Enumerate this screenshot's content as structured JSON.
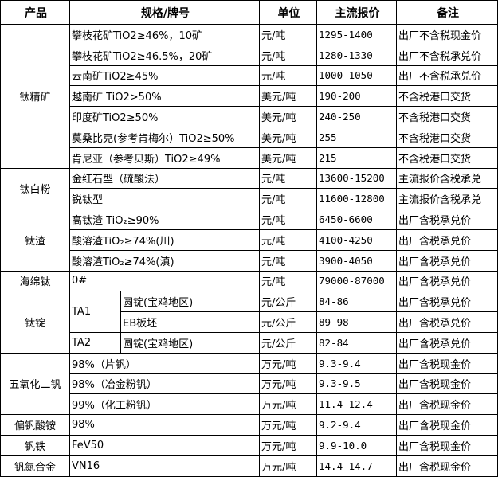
{
  "header": {
    "product": "产品",
    "spec": "规格/牌号",
    "unit": "单位",
    "price": "主流报价",
    "note": "备注"
  },
  "groups": [
    {
      "product": "钛精矿",
      "items": [
        {
          "spec": "攀枝花矿TiO2≥46%，10矿",
          "unit": "元/吨",
          "price": "1295-1400",
          "note": "出厂不含税现金价"
        },
        {
          "spec": "攀枝花矿TiO2≥46.5%，20矿",
          "unit": "元/吨",
          "price": "1280-1330",
          "note": "出厂不含税承兑价"
        },
        {
          "spec": "云南矿TiO2≥45%",
          "unit": "元/吨",
          "price": "1000-1050",
          "note": "出厂不含税承兑价"
        },
        {
          "spec": "越南矿 TiO2>50%",
          "unit": "美元/吨",
          "price": "190-200",
          "note": "不含税港口交货"
        },
        {
          "spec": "印度矿TiO2≥50%",
          "unit": "美元/吨",
          "price": "240-250",
          "note": "不含税港口交货"
        },
        {
          "spec": "莫桑比克(参考肯梅尔）TiO2≥50%",
          "unit": "美元/吨",
          "price": "255",
          "note": "不含税港口交货"
        },
        {
          "spec": "肯尼亚（参考贝斯）TiO2≥49%",
          "unit": "美元/吨",
          "price": "215",
          "note": "不含税港口交货"
        }
      ]
    },
    {
      "product": "钛白粉",
      "items": [
        {
          "spec": "金红石型（硫酸法）",
          "unit": "元/吨",
          "price": "13600-15200",
          "note": "主流报价含税承兑"
        },
        {
          "spec": "锐钛型",
          "unit": "元/吨",
          "price": "11600-12800",
          "note": "主流报价含税承兑"
        }
      ]
    },
    {
      "product": "钛渣",
      "items": [
        {
          "spec": "高钛渣 TiO₂≥90%",
          "unit": "元/吨",
          "price": "6450-6600",
          "note": "出厂含税承兑价"
        },
        {
          "spec": "酸溶渣TiO₂≥74%(川)",
          "unit": "元/吨",
          "price": "4100-4250",
          "note": "出厂含税承兑价"
        },
        {
          "spec": "酸溶渣TiO₂≥74%(滇)",
          "unit": "元/吨",
          "price": "3900-4050",
          "note": "出厂含税承兑价"
        }
      ]
    },
    {
      "product": "海绵钛",
      "items": [
        {
          "spec": "0#",
          "unit": "元/吨",
          "price": "79000-87000",
          "note": "出厂含税承兑价"
        }
      ]
    },
    {
      "product": "钛锭",
      "items": [
        {
          "grade": "TA1",
          "grade_span": 2,
          "spec": "圆锭(宝鸡地区)",
          "unit": "元/公斤",
          "price": "84-86",
          "note": "出厂含税承兑价"
        },
        {
          "spec": "EB板坯",
          "unit": "元/公斤",
          "price": "89-98",
          "note": "出厂含税承兑价",
          "sub": true
        },
        {
          "grade": "TA2",
          "grade_span": 1,
          "spec": "圆锭(宝鸡地区)",
          "unit": "元/公斤",
          "price": "82-84",
          "note": "出厂含税承兑价"
        }
      ]
    },
    {
      "product": "五氧化二钒",
      "items": [
        {
          "spec": "98%（片钒）",
          "unit": "万元/吨",
          "price": "9.3-9.4",
          "note": "出厂含税现金价"
        },
        {
          "spec": "98%（冶金粉钒）",
          "unit": "万元/吨",
          "price": "9.3-9.5",
          "note": "出厂含税现金价"
        },
        {
          "spec": "99%（化工粉钒）",
          "unit": "万元/吨",
          "price": "11.4-12.4",
          "note": "出厂含税现金价"
        }
      ]
    },
    {
      "product": "偏钒酸铵",
      "items": [
        {
          "spec": "98%",
          "unit": "万元/吨",
          "price": "9.2-9.4",
          "note": "出厂含税现金价"
        }
      ]
    },
    {
      "product": "钒铁",
      "items": [
        {
          "spec": "FeV50",
          "unit": "万元/吨",
          "price": "9.9-10.0",
          "note": "出厂含税现金价"
        }
      ]
    },
    {
      "product": "钒氮合金",
      "items": [
        {
          "spec": "VN16",
          "unit": "万元/吨",
          "price": "14.4-14.7",
          "note": "出厂含税现金价"
        }
      ]
    }
  ]
}
